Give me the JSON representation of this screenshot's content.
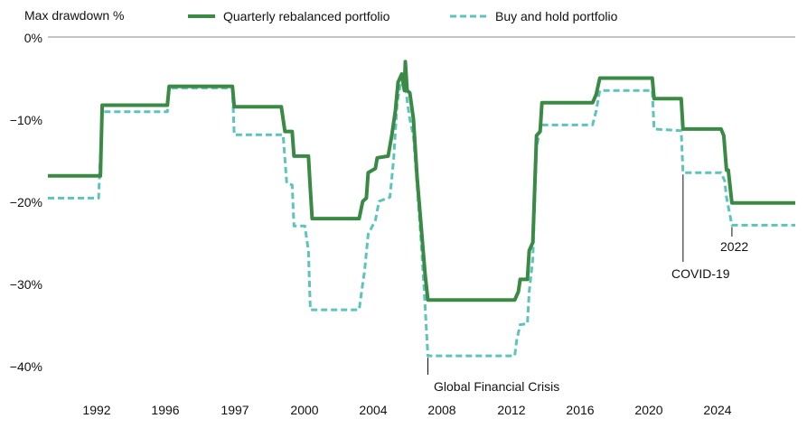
{
  "chart_data": {
    "type": "line",
    "ylabel": "Max drawdown %",
    "yticks": [
      {
        "value": 0,
        "label": "0%"
      },
      {
        "value": -10,
        "label": "−10%"
      },
      {
        "value": -20,
        "label": "−20%"
      },
      {
        "value": -30,
        "label": "−30%"
      },
      {
        "value": -40,
        "label": "−40%"
      }
    ],
    "xticks": [
      {
        "value": 1992,
        "label": "1992"
      },
      {
        "value": 1996,
        "label": "1996"
      },
      {
        "value": 1997,
        "label": "1997"
      },
      {
        "value": 2000,
        "label": "2000"
      },
      {
        "value": 2004,
        "label": "2004"
      },
      {
        "value": 2008,
        "label": "2008"
      },
      {
        "value": 2012,
        "label": "2012"
      },
      {
        "value": 2016,
        "label": "2016"
      },
      {
        "value": 2020,
        "label": "2020"
      },
      {
        "value": 2024,
        "label": "2024"
      }
    ],
    "legend_position": "top",
    "colors": {
      "rebalanced": "#3a8a45",
      "buyhold": "#5cc4bb",
      "axis": "#888888"
    },
    "series": [
      {
        "name": "Quarterly rebalanced portfolio",
        "style": "solid",
        "points": [
          [
            1989,
            -16.9
          ],
          [
            1991.9,
            -16.9
          ],
          [
            1992,
            -8.3
          ],
          [
            1995.6,
            -8.3
          ],
          [
            1995.7,
            -6.0
          ],
          [
            1999.2,
            -6.0
          ],
          [
            1999.3,
            -8.5
          ],
          [
            2001.9,
            -8.5
          ],
          [
            2002.1,
            -11.5
          ],
          [
            2002.5,
            -11.5
          ],
          [
            2002.6,
            -14.5
          ],
          [
            2003.4,
            -14.5
          ],
          [
            2003.5,
            -18.5
          ],
          [
            2003.6,
            -22.1
          ],
          [
            2006.2,
            -22.1
          ],
          [
            2006.4,
            -20.0
          ],
          [
            2006.6,
            -19.6
          ],
          [
            2006.7,
            -16.5
          ],
          [
            2007.1,
            -16.0
          ],
          [
            2007.2,
            -14.7
          ],
          [
            2007.8,
            -14.5
          ],
          [
            2008.0,
            -12.0
          ],
          [
            2008.2,
            -9.0
          ],
          [
            2008.35,
            -5.5
          ],
          [
            2008.55,
            -4.5
          ],
          [
            2008.7,
            -6.5
          ],
          [
            2008.75,
            -3.0
          ],
          [
            2008.85,
            -6.5
          ],
          [
            2009.0,
            -6.8
          ],
          [
            2009.2,
            -10.0
          ],
          [
            2009.4,
            -17.0
          ],
          [
            2009.7,
            -25.0
          ],
          [
            2009.85,
            -29.0
          ],
          [
            2010.0,
            -32.0
          ],
          [
            2014.8,
            -32.0
          ],
          [
            2015.0,
            -31.0
          ],
          [
            2015.1,
            -29.5
          ],
          [
            2015.5,
            -29.5
          ],
          [
            2015.6,
            -26.0
          ],
          [
            2015.8,
            -25.0
          ],
          [
            2016.0,
            -12.0
          ],
          [
            2016.2,
            -11.5
          ],
          [
            2016.3,
            -8.0
          ],
          [
            2019.1,
            -8.0
          ],
          [
            2019.3,
            -7.0
          ],
          [
            2019.5,
            -5.0
          ],
          [
            2022.4,
            -5.0
          ],
          [
            2022.5,
            -7.5
          ],
          [
            2024.0,
            -7.5
          ],
          [
            2024.1,
            -11.2
          ],
          [
            2026.2,
            -11.2
          ],
          [
            2026.35,
            -12.0
          ],
          [
            2026.5,
            -16.2
          ],
          [
            2026.6,
            -16.2
          ],
          [
            2026.8,
            -20.2
          ],
          [
            2030.3,
            -20.2
          ]
        ]
      },
      {
        "name": "Buy and hold portfolio",
        "style": "dashed",
        "points": [
          [
            1989,
            -19.6
          ],
          [
            1991.8,
            -19.6
          ],
          [
            1992,
            -9.1
          ],
          [
            1995.6,
            -9.1
          ],
          [
            1995.7,
            -6.2
          ],
          [
            1999.2,
            -6.2
          ],
          [
            1999.3,
            -11.9
          ],
          [
            2002.0,
            -11.9
          ],
          [
            2002.2,
            -17.8
          ],
          [
            2002.5,
            -18.0
          ],
          [
            2002.6,
            -23.0
          ],
          [
            2003.2,
            -23.0
          ],
          [
            2003.4,
            -26.0
          ],
          [
            2003.5,
            -33.2
          ],
          [
            2006.2,
            -33.2
          ],
          [
            2006.4,
            -30.0
          ],
          [
            2006.5,
            -28.5
          ],
          [
            2006.7,
            -24.0
          ],
          [
            2007.1,
            -22.3
          ],
          [
            2007.3,
            -20.0
          ],
          [
            2007.9,
            -19.5
          ],
          [
            2008.1,
            -15.0
          ],
          [
            2008.3,
            -8.0
          ],
          [
            2008.5,
            -5.5
          ],
          [
            2008.7,
            -5.2
          ],
          [
            2008.9,
            -8.5
          ],
          [
            2009.0,
            -10.0
          ],
          [
            2009.2,
            -12.0
          ],
          [
            2009.4,
            -18.0
          ],
          [
            2009.6,
            -24.0
          ],
          [
            2009.8,
            -31.0
          ],
          [
            2010.0,
            -38.8
          ],
          [
            2014.8,
            -38.8
          ],
          [
            2014.9,
            -37.0
          ],
          [
            2015.1,
            -35.0
          ],
          [
            2015.5,
            -34.9
          ],
          [
            2015.6,
            -31.0
          ],
          [
            2015.8,
            -27.0
          ],
          [
            2016.0,
            -13.5
          ],
          [
            2016.2,
            -11.0
          ],
          [
            2016.3,
            -10.7
          ],
          [
            2019.1,
            -10.7
          ],
          [
            2019.3,
            -9.0
          ],
          [
            2019.5,
            -6.5
          ],
          [
            2022.4,
            -6.5
          ],
          [
            2022.5,
            -11.2
          ],
          [
            2024.0,
            -11.4
          ],
          [
            2024.1,
            -16.5
          ],
          [
            2026.2,
            -16.5
          ],
          [
            2026.4,
            -17.5
          ],
          [
            2026.5,
            -19.5
          ],
          [
            2026.8,
            -22.9
          ],
          [
            2030.3,
            -22.9
          ]
        ]
      }
    ],
    "annotations": [
      {
        "id": "gfc",
        "label": "Global Financial Crisis",
        "x": 2010.0,
        "y": -38.8
      },
      {
        "id": "covid",
        "label": "COVID-19",
        "x": 2024.1,
        "y": -16.5
      },
      {
        "id": "y2022",
        "label": "2022",
        "x": 2026.8,
        "y": -22.9
      }
    ]
  }
}
